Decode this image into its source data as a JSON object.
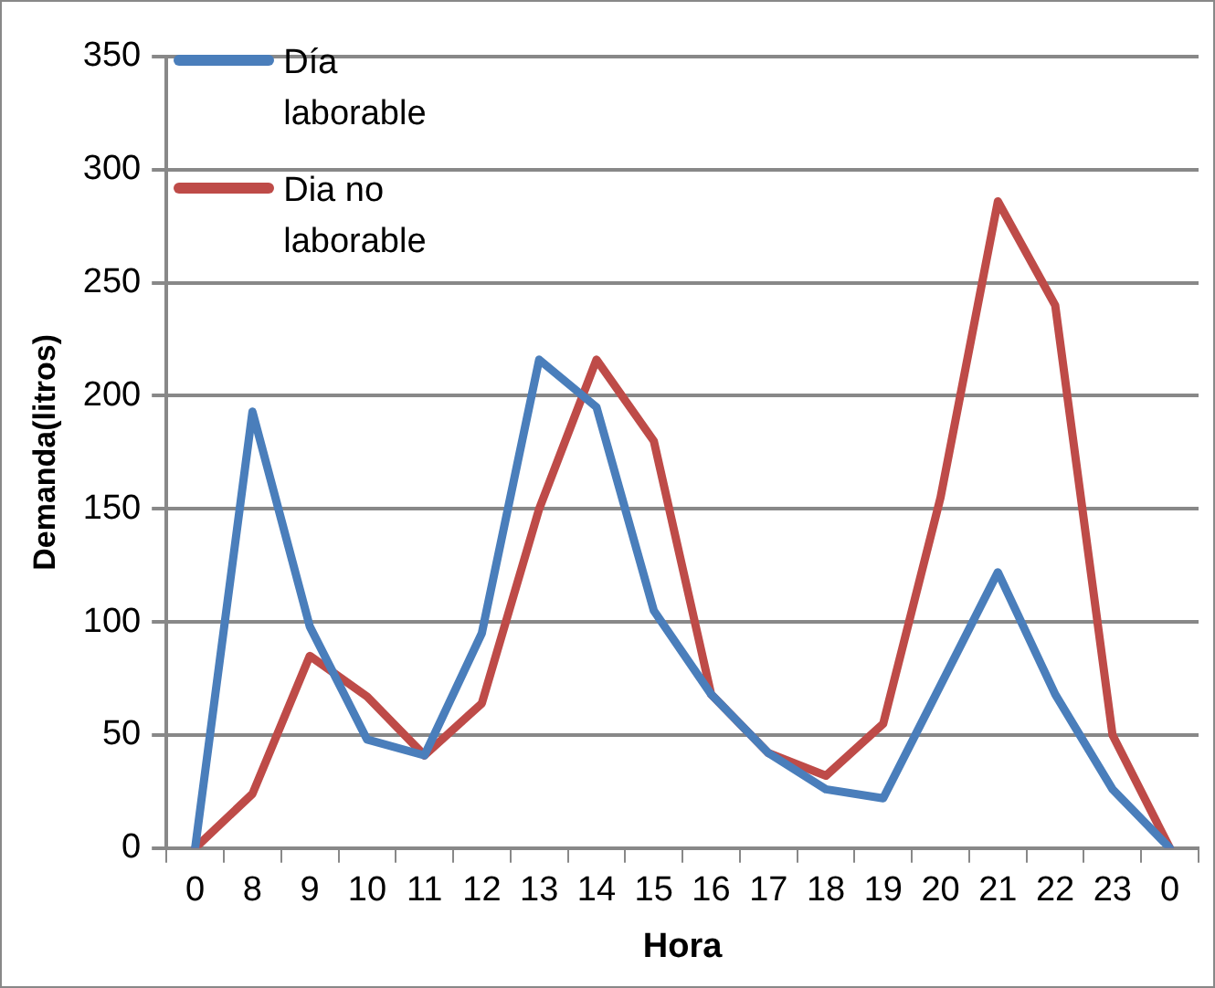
{
  "chart_data": {
    "type": "line",
    "xlabel": "Hora",
    "ylabel": "Demanda(litros)",
    "categories": [
      "0",
      "8",
      "9",
      "10",
      "11",
      "12",
      "13",
      "14",
      "15",
      "16",
      "17",
      "18",
      "19",
      "20",
      "21",
      "22",
      "23",
      "0"
    ],
    "series": [
      {
        "name": "Día laborable",
        "color": "#4a7ebb",
        "values": [
          0,
          193,
          98,
          48,
          41,
          95,
          216,
          195,
          105,
          68,
          42,
          26,
          22,
          72,
          122,
          68,
          26,
          0
        ]
      },
      {
        "name": "Dia no laborable",
        "color": "#be4b48",
        "values": [
          0,
          24,
          85,
          67,
          41,
          64,
          150,
          216,
          180,
          68,
          42,
          32,
          55,
          155,
          286,
          240,
          50,
          0
        ]
      }
    ],
    "ylim": [
      0,
      350
    ],
    "yticks": [
      0,
      50,
      100,
      150,
      200,
      250,
      300,
      350
    ],
    "grid": "y",
    "legend": "top left",
    "marker": "none",
    "line_style": "solid"
  }
}
